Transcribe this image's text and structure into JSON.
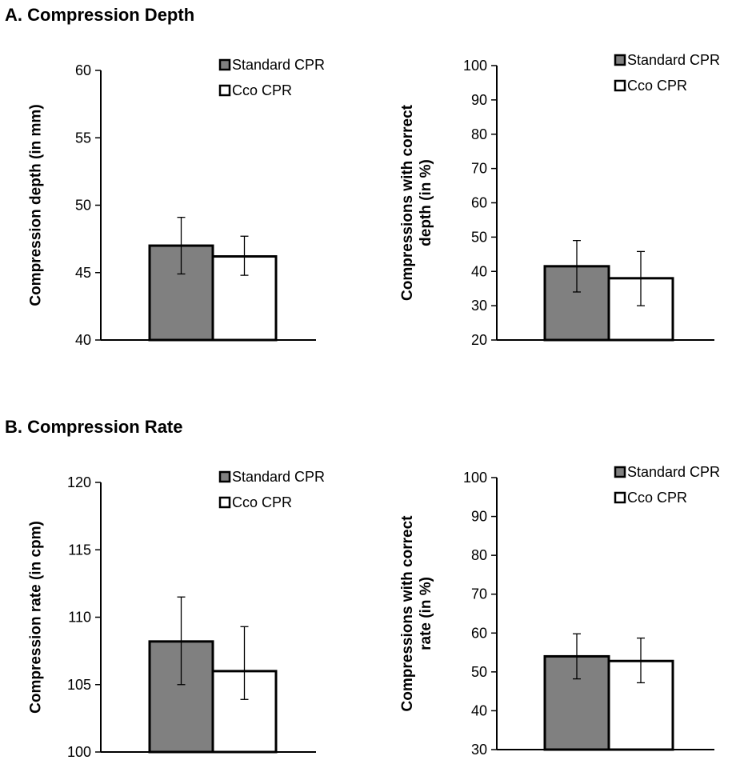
{
  "panels": {
    "a": {
      "title": "A. Compression Depth"
    },
    "b": {
      "title": "B. Compression Rate"
    }
  },
  "colors": {
    "standard": "#808080",
    "cco": "#ffffff",
    "outline": "#000000"
  },
  "chart_data": [
    {
      "type": "bar",
      "panel": "A",
      "title": "",
      "xlabel": "",
      "ylabel": "Compression depth (in mm)",
      "ylim": [
        40,
        60
      ],
      "yticks": [
        40,
        45,
        50,
        55,
        60
      ],
      "legend_position": "top-right",
      "categories": [
        ""
      ],
      "series": [
        {
          "name": "Standard CPR",
          "values": [
            47.0
          ],
          "error_low": [
            44.9
          ],
          "error_high": [
            49.1
          ]
        },
        {
          "name": "Cco CPR",
          "values": [
            46.2
          ],
          "error_low": [
            44.8
          ],
          "error_high": [
            47.7
          ]
        }
      ]
    },
    {
      "type": "bar",
      "panel": "A",
      "title": "",
      "xlabel": "",
      "ylabel": "Compressions with correct depth (in %)",
      "ylabel_lines": [
        "Compressions with correct",
        "depth (in %)"
      ],
      "ylim": [
        20,
        100
      ],
      "yticks": [
        20,
        30,
        40,
        50,
        60,
        70,
        80,
        90,
        100
      ],
      "legend_position": "top-right",
      "categories": [
        ""
      ],
      "series": [
        {
          "name": "Standard CPR",
          "values": [
            41.5
          ],
          "error_low": [
            34.0
          ],
          "error_high": [
            49.0
          ]
        },
        {
          "name": "Cco CPR",
          "values": [
            38.0
          ],
          "error_low": [
            30.0
          ],
          "error_high": [
            45.8
          ]
        }
      ]
    },
    {
      "type": "bar",
      "panel": "B",
      "title": "",
      "xlabel": "",
      "ylabel": "Compression rate (in cpm)",
      "ylim": [
        100,
        120
      ],
      "yticks": [
        100,
        105,
        110,
        115,
        120
      ],
      "legend_position": "top-right",
      "categories": [
        ""
      ],
      "series": [
        {
          "name": "Standard CPR",
          "values": [
            108.2
          ],
          "error_low": [
            105.0
          ],
          "error_high": [
            111.5
          ]
        },
        {
          "name": "Cco CPR",
          "values": [
            106.0
          ],
          "error_low": [
            103.9
          ],
          "error_high": [
            109.3
          ]
        }
      ]
    },
    {
      "type": "bar",
      "panel": "B",
      "title": "",
      "xlabel": "",
      "ylabel": "Compressions with correct rate (in %)",
      "ylabel_lines": [
        "Compressions with correct",
        "rate (in %)"
      ],
      "ylim": [
        30,
        100
      ],
      "yticks": [
        30,
        40,
        50,
        60,
        70,
        80,
        90,
        100
      ],
      "legend_position": "top-right",
      "categories": [
        ""
      ],
      "series": [
        {
          "name": "Standard CPR",
          "values": [
            54.0
          ],
          "error_low": [
            48.2
          ],
          "error_high": [
            59.8
          ]
        },
        {
          "name": "Cco CPR",
          "values": [
            52.8
          ],
          "error_low": [
            47.2
          ],
          "error_high": [
            58.7
          ]
        }
      ]
    }
  ]
}
